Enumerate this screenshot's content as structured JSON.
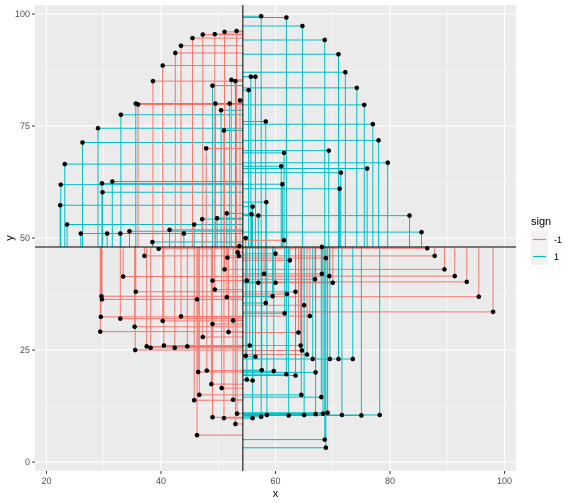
{
  "chart_data": {
    "type": "scatter",
    "xlabel": "x",
    "ylabel": "y",
    "xlim": [
      18,
      102
    ],
    "ylim": [
      -2,
      102
    ],
    "x_ticks": [
      20,
      40,
      60,
      80,
      100
    ],
    "y_ticks": [
      0,
      25,
      50,
      75,
      100
    ],
    "x_tick_labels": [
      "20",
      "40",
      "60",
      "80",
      "100"
    ],
    "y_tick_labels": [
      "0",
      "25",
      "50",
      "75",
      "100"
    ],
    "reference_lines": {
      "vline_x": 54.3,
      "hline_y": 48.0
    },
    "grid": true,
    "legend": {
      "title": "sign",
      "position": "right",
      "entries": [
        {
          "label": "-1",
          "color": "#F8766D"
        },
        {
          "label": "1",
          "color": "#00BFC4"
        }
      ]
    },
    "point_color": "#000000",
    "series": [
      {
        "sign": "1",
        "color": "#00BFC4",
        "points": [
          [
            57.5,
            99.5
          ],
          [
            61.9,
            99.2
          ],
          [
            64.7,
            97.3
          ],
          [
            68.6,
            94.2
          ],
          [
            71.0,
            91.0
          ],
          [
            72.2,
            87.0
          ],
          [
            74.2,
            83.5
          ],
          [
            75.5,
            79.7
          ],
          [
            77.0,
            75.4
          ],
          [
            78.0,
            71.8
          ],
          [
            79.6,
            66.8
          ],
          [
            76.0,
            65.5
          ],
          [
            69.3,
            69.5
          ],
          [
            71.4,
            64.6
          ],
          [
            71.2,
            61.0
          ],
          [
            83.4,
            55.0
          ],
          [
            85.5,
            51.3
          ],
          [
            61.5,
            69.0
          ],
          [
            61.0,
            66.0
          ],
          [
            61.2,
            62.0
          ],
          [
            58.4,
            58.0
          ],
          [
            56.0,
            57.0
          ],
          [
            55.8,
            55.3
          ],
          [
            57.0,
            55.0
          ],
          [
            56.5,
            86.0
          ],
          [
            55.7,
            86.0
          ],
          [
            55.3,
            83.0
          ],
          [
            58.3,
            76.0
          ],
          [
            54.8,
            50.0
          ],
          [
            68.1,
            48.0
          ],
          [
            53.0,
            85.0
          ],
          [
            52.0,
            80.0
          ],
          [
            51.0,
            74.0
          ],
          [
            49.0,
            84.0
          ],
          [
            49.5,
            80.0
          ],
          [
            50.5,
            78.5
          ],
          [
            51.5,
            55.5
          ],
          [
            49.8,
            54.4
          ],
          [
            47.2,
            54.2
          ],
          [
            45.8,
            53.0
          ],
          [
            44.0,
            51.0
          ],
          [
            41.5,
            51.8
          ],
          [
            38.5,
            49.1
          ],
          [
            34.5,
            51.5
          ],
          [
            30.6,
            51.0
          ],
          [
            32.9,
            51.0
          ],
          [
            29.8,
            60.2
          ],
          [
            29.7,
            62.2
          ],
          [
            31.5,
            62.6
          ],
          [
            26.0,
            51.0
          ],
          [
            22.4,
            57.3
          ],
          [
            22.5,
            61.9
          ],
          [
            23.6,
            53.0
          ],
          [
            29.0,
            74.5
          ],
          [
            35.6,
            80.0
          ],
          [
            33.0,
            77.5
          ],
          [
            26.3,
            71.3
          ],
          [
            23.2,
            66.5
          ]
        ]
      },
      {
        "sign": "-1",
        "color": "#F8766D",
        "points": [
          [
            38.6,
            85.0
          ],
          [
            40.3,
            88.5
          ],
          [
            42.5,
            91.3
          ],
          [
            43.5,
            92.9
          ],
          [
            45.5,
            94.6
          ],
          [
            47.3,
            95.4
          ],
          [
            49.4,
            95.5
          ],
          [
            51.1,
            96.0
          ],
          [
            53.2,
            96.2
          ],
          [
            53.8,
            80.7
          ],
          [
            52.3,
            85.3
          ],
          [
            36.0,
            79.8
          ],
          [
            47.9,
            70.0
          ],
          [
            53.7,
            48.2
          ],
          [
            53.4,
            46.8
          ],
          [
            53.6,
            46.0
          ],
          [
            51.6,
            45.6
          ],
          [
            51.1,
            43.0
          ],
          [
            49.0,
            40.5
          ],
          [
            49.4,
            38.5
          ],
          [
            51.5,
            36.8
          ],
          [
            46.3,
            36.3
          ],
          [
            43.5,
            32.5
          ],
          [
            40.3,
            31.5
          ],
          [
            49.0,
            30.8
          ],
          [
            52.6,
            31.6
          ],
          [
            51.8,
            29.0
          ],
          [
            47.3,
            27.9
          ],
          [
            44.6,
            25.8
          ],
          [
            42.4,
            25.5
          ],
          [
            40.5,
            26.0
          ],
          [
            38.2,
            25.5
          ],
          [
            35.5,
            25.0
          ],
          [
            37.5,
            25.8
          ],
          [
            35.4,
            30.2
          ],
          [
            32.9,
            32.0
          ],
          [
            29.4,
            29.1
          ],
          [
            29.5,
            32.4
          ],
          [
            29.7,
            36.3
          ],
          [
            29.6,
            37.0
          ],
          [
            33.4,
            41.4
          ],
          [
            37.1,
            46.0
          ],
          [
            39.6,
            47.6
          ],
          [
            35.6,
            38.0
          ],
          [
            46.7,
            15.0
          ],
          [
            48.8,
            17.4
          ],
          [
            50.6,
            16.5
          ],
          [
            52.6,
            13.9
          ],
          [
            49.0,
            10.0
          ],
          [
            51.0,
            9.8
          ],
          [
            53.0,
            8.5
          ],
          [
            53.3,
            10.8
          ],
          [
            46.3,
            6.0
          ],
          [
            46.5,
            20.1
          ],
          [
            45.8,
            13.8
          ],
          [
            48.0,
            20.4
          ],
          [
            60.0,
            40.0
          ],
          [
            58.0,
            42.0
          ],
          [
            60.0,
            46.5
          ],
          [
            61.5,
            49.5
          ],
          [
            62.5,
            45.0
          ],
          [
            62.0,
            37.5
          ],
          [
            63.5,
            38.0
          ],
          [
            64.0,
            28.9
          ],
          [
            64.4,
            26.0
          ],
          [
            64.6,
            24.9
          ],
          [
            65.5,
            24.0
          ],
          [
            66.0,
            32.6
          ],
          [
            65.0,
            35.0
          ],
          [
            66.9,
            40.8
          ],
          [
            68.8,
            45.5
          ],
          [
            68.1,
            42.0
          ],
          [
            69.4,
            41.5
          ],
          [
            70.0,
            40.0
          ],
          [
            86.5,
            47.7
          ],
          [
            87.8,
            46.0
          ],
          [
            89.5,
            43.0
          ],
          [
            91.3,
            41.5
          ],
          [
            93.4,
            40.2
          ],
          [
            95.5,
            36.9
          ],
          [
            98.0,
            33.5
          ]
        ]
      },
      {
        "sign": "1-lower",
        "color": "#00BFC4",
        "points": [
          [
            55.0,
            40.5
          ],
          [
            57.0,
            40.0
          ],
          [
            58.3,
            35.5
          ],
          [
            59.5,
            37.0
          ],
          [
            61.6,
            33.2
          ],
          [
            59.7,
            20.3
          ],
          [
            61.9,
            19.6
          ],
          [
            63.5,
            19.3
          ],
          [
            57.6,
            20.5
          ],
          [
            55.0,
            18.4
          ],
          [
            56.0,
            18.2
          ],
          [
            54.8,
            23.7
          ],
          [
            55.5,
            26.0
          ],
          [
            56.5,
            23.5
          ],
          [
            66.5,
            23.0
          ],
          [
            69.5,
            23.0
          ],
          [
            71.0,
            23.0
          ],
          [
            73.5,
            23.0
          ],
          [
            67.0,
            20.0
          ],
          [
            64.5,
            15.0
          ],
          [
            58.5,
            10.5
          ],
          [
            62.3,
            10.4
          ],
          [
            65.0,
            10.5
          ],
          [
            67.0,
            10.7
          ],
          [
            68.3,
            10.8
          ],
          [
            69.1,
            11.0
          ],
          [
            71.6,
            10.5
          ],
          [
            75.0,
            10.4
          ],
          [
            78.2,
            10.5
          ],
          [
            56.0,
            9.8
          ],
          [
            57.5,
            10.1
          ],
          [
            68.8,
            3.2
          ],
          [
            68.6,
            5.0
          ],
          [
            68.0,
            14.5
          ]
        ]
      }
    ]
  }
}
